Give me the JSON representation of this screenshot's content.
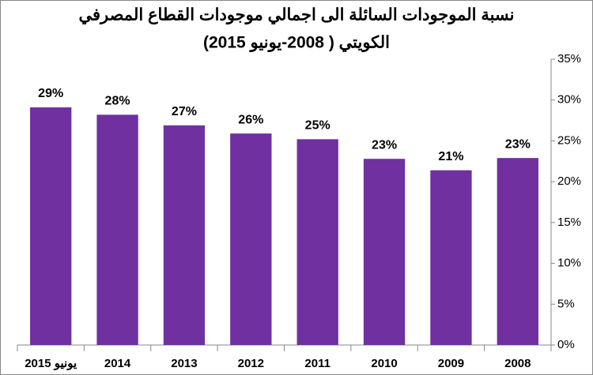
{
  "chart_data": {
    "type": "bar",
    "title": [
      "نسبة الموجودات السائلة الى اجمالي موجودات القطاع المصرفي",
      "الكويتي ( 2008-يونيو 2015)"
    ],
    "categories": [
      "يونيو 2015",
      "2014",
      "2013",
      "2012",
      "2011",
      "2010",
      "2009",
      "2008"
    ],
    "values": [
      29.1,
      28.2,
      26.9,
      25.9,
      25.2,
      22.8,
      21.4,
      22.9
    ],
    "value_labels": [
      "29%",
      "28%",
      "27%",
      "26%",
      "25%",
      "23%",
      "21%",
      "23%"
    ],
    "color": "#7030a0",
    "ylim": [
      0,
      35
    ],
    "yticks": [
      {
        "value": 0,
        "label": "0%"
      },
      {
        "value": 5,
        "label": "5%"
      },
      {
        "value": 10,
        "label": "10%"
      },
      {
        "value": 15,
        "label": "15%"
      },
      {
        "value": 20,
        "label": "20%"
      },
      {
        "value": 25,
        "label": "25%"
      },
      {
        "value": 30,
        "label": "30%"
      },
      {
        "value": 35,
        "label": "35%"
      }
    ],
    "grid": false
  }
}
